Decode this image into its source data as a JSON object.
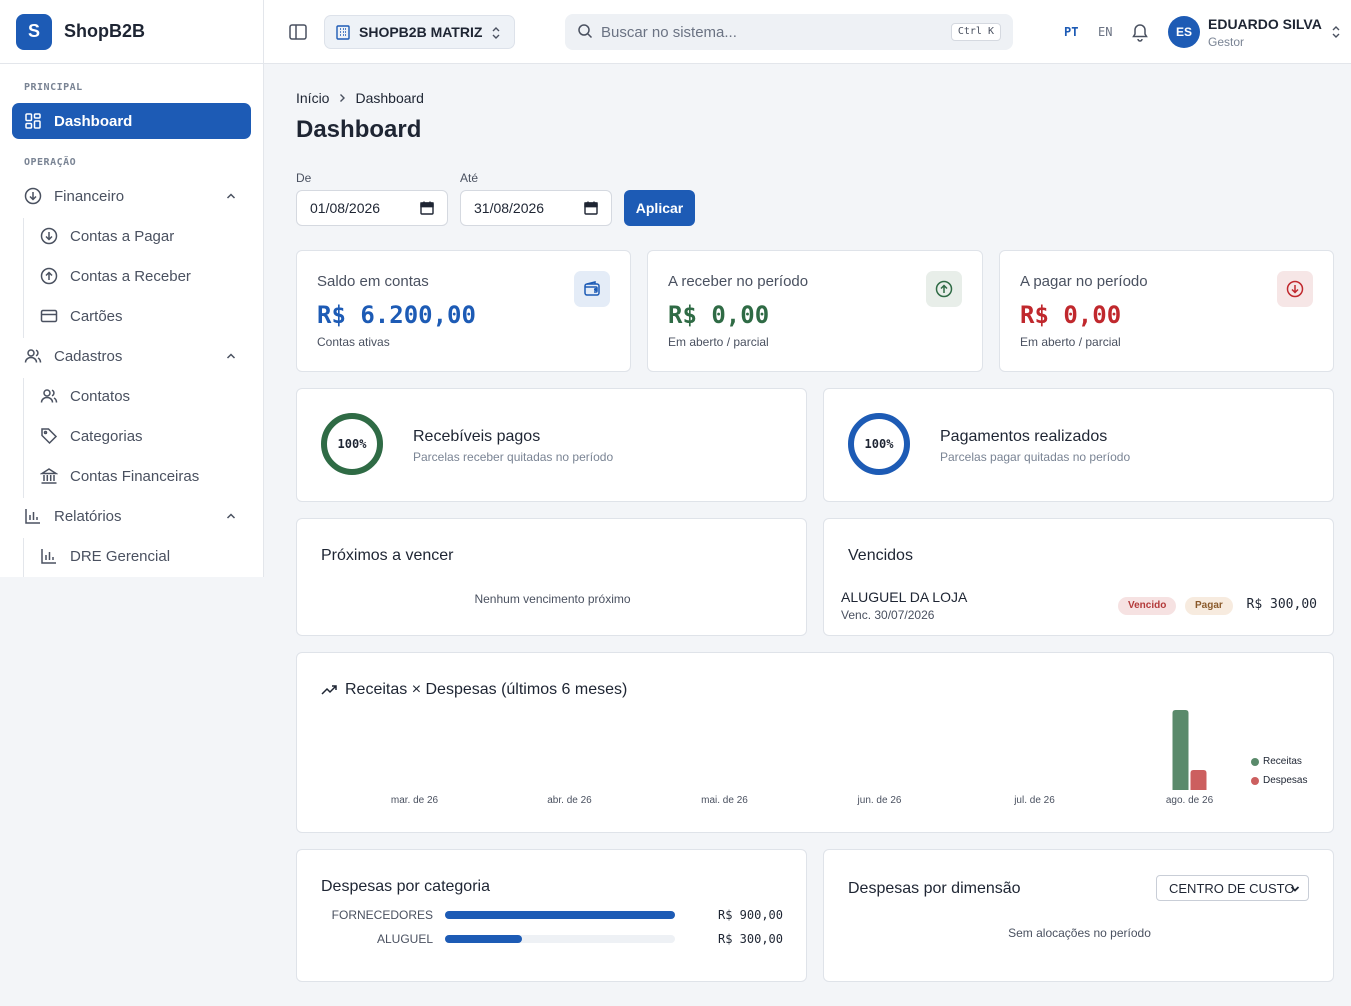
{
  "app": {
    "logo_letter": "S",
    "name": "ShopB2B"
  },
  "sidebar": {
    "section_principal": "PRINCIPAL",
    "section_operacao": "OPERAÇÃO",
    "dashboard": "Dashboard",
    "financeiro": "Financeiro",
    "contas_pagar": "Contas a Pagar",
    "contas_receber": "Contas a Receber",
    "cartoes": "Cartões",
    "cadastros": "Cadastros",
    "contatos": "Contatos",
    "categorias": "Categorias",
    "contas_financeiras": "Contas Financeiras",
    "relatorios": "Relatórios",
    "dre": "DRE Gerencial"
  },
  "topbar": {
    "company": "SHOPB2B MATRIZ",
    "search_placeholder": "Buscar no sistema...",
    "shortcut": "Ctrl K",
    "lang_pt": "PT",
    "lang_en": "EN",
    "user_initials": "ES",
    "user_name": "EDUARDO SILVA",
    "user_role": "Gestor"
  },
  "breadcrumb": {
    "home": "Início",
    "current": "Dashboard"
  },
  "page_title": "Dashboard",
  "filter": {
    "from_label": "De",
    "from_value": "01/08/2026",
    "to_label": "Até",
    "to_value": "31/08/2026",
    "apply": "Aplicar"
  },
  "kpis": {
    "saldo": {
      "label": "Saldo em contas",
      "value": "R$ 6.200,00",
      "sub": "Contas ativas",
      "color": "#1d5bb5"
    },
    "receber": {
      "label": "A receber no período",
      "value": "R$ 0,00",
      "sub": "Em aberto / parcial",
      "color": "#2f6b45"
    },
    "pagar": {
      "label": "A pagar no período",
      "value": "R$ 0,00",
      "sub": "Em aberto / parcial",
      "color": "#c0282d"
    }
  },
  "progress": {
    "recebiveis": {
      "percent": "100%",
      "fraction": 1.0,
      "title": "Recebíveis pagos",
      "sub": "Parcelas receber quitadas no período",
      "color": "#2f6b45"
    },
    "pagamentos": {
      "percent": "100%",
      "fraction": 1.0,
      "title": "Pagamentos realizados",
      "sub": "Parcelas pagar quitadas no período",
      "color": "#1d5bb5"
    }
  },
  "proximos": {
    "title": "Próximos a vencer",
    "empty": "Nenhum vencimento próximo"
  },
  "vencidos": {
    "title": "Vencidos",
    "item_name": "ALUGUEL DA LOJA",
    "item_due": "Venc. 30/07/2026",
    "badge_status": "Vencido",
    "badge_type": "Pagar",
    "item_value": "R$ 300,00"
  },
  "chart_title": "Receitas × Despesas (últimos 6 meses)",
  "chart_data": {
    "type": "bar",
    "categories": [
      "mar. de 26",
      "abr. de 26",
      "mai. de 26",
      "jun. de 26",
      "jul. de 26",
      "ago. de 26"
    ],
    "series": [
      {
        "name": "Receitas",
        "color": "#5a8a6b",
        "values": [
          0,
          0,
          0,
          0,
          0,
          1200
        ]
      },
      {
        "name": "Despesas",
        "color": "#cc5f5f",
        "values": [
          0,
          0,
          0,
          0,
          0,
          300
        ]
      }
    ],
    "ylim": [
      0,
      1200
    ],
    "legend": "right"
  },
  "categorias": {
    "title": "Despesas por categoria",
    "items": [
      {
        "name": "FORNECEDORES",
        "value": "R$ 900,00",
        "fraction": 1.0
      },
      {
        "name": "ALUGUEL",
        "value": "R$ 300,00",
        "fraction": 0.333
      }
    ]
  },
  "dimensao": {
    "title": "Despesas por dimensão",
    "select_value": "CENTRO DE CUSTO",
    "empty": "Sem alocações no período"
  }
}
